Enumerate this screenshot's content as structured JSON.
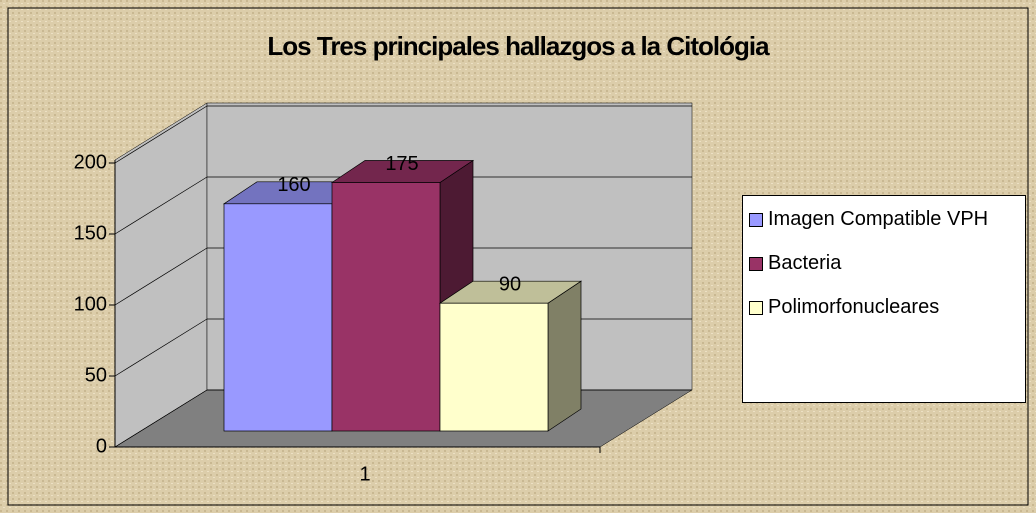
{
  "chart_data": {
    "type": "bar3d",
    "title": "Los Tres principales hallazgos a la Citológia",
    "categories": [
      "1"
    ],
    "series": [
      {
        "name": "Imagen Compatible VPH",
        "color": "#9999ff",
        "values": [
          160
        ]
      },
      {
        "name": "Bacteria",
        "color": "#993366",
        "values": [
          175
        ]
      },
      {
        "name": "Polimorfonucleares",
        "color": "#ffffcc",
        "values": [
          90
        ]
      }
    ],
    "ylim": [
      0,
      200
    ],
    "yticks": [
      0,
      50,
      100,
      150,
      200
    ],
    "grid": true,
    "legend": "right"
  }
}
